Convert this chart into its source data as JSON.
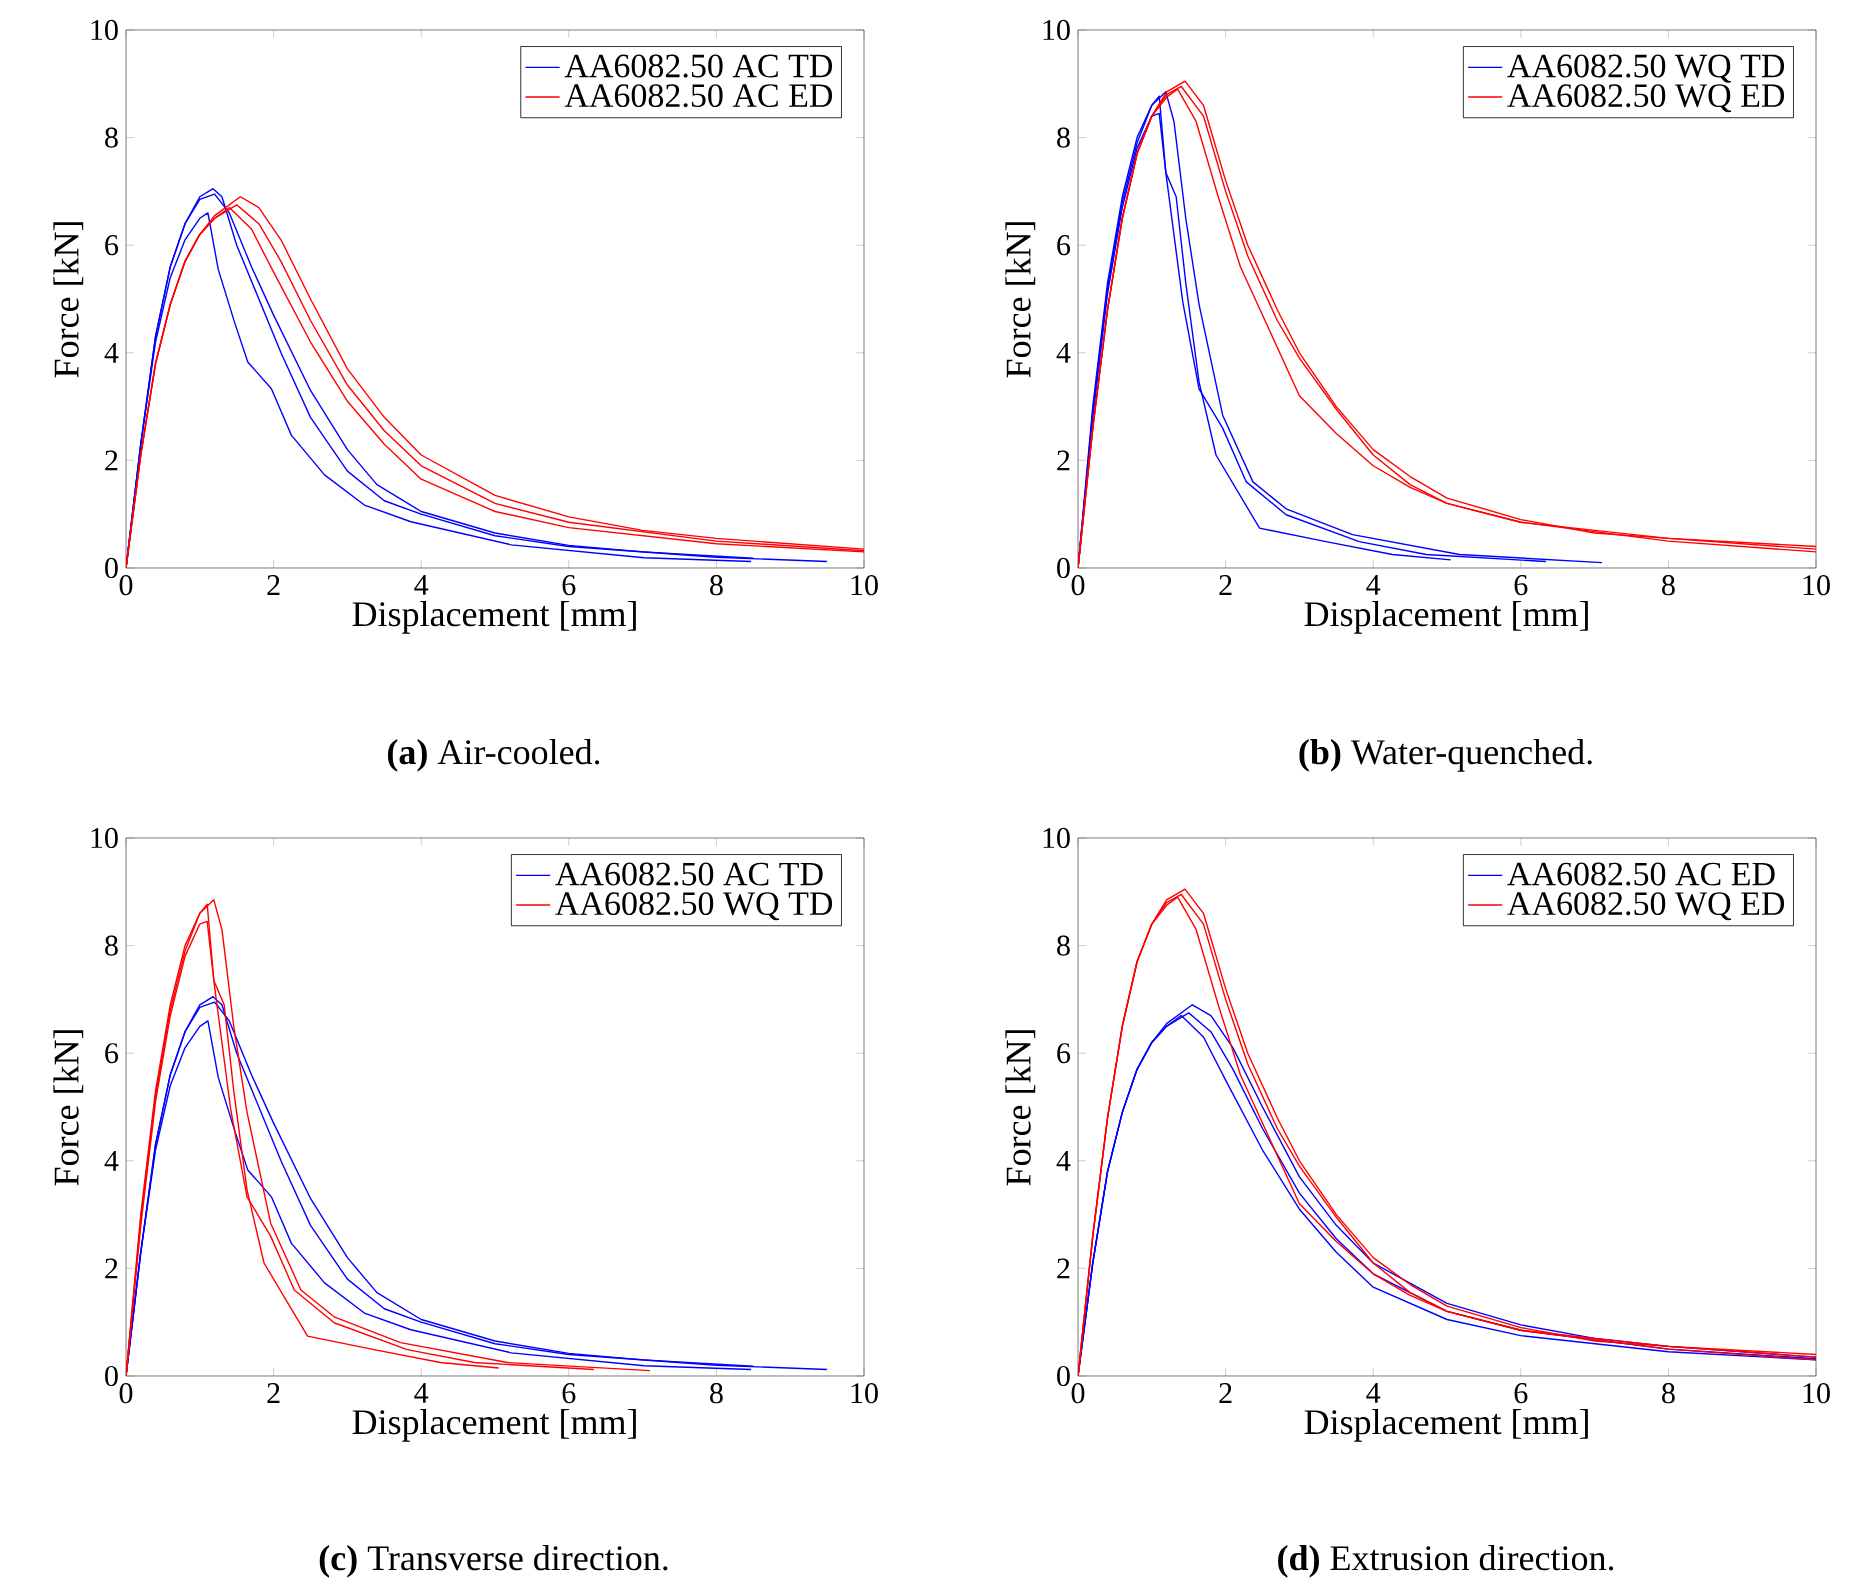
{
  "chart_data": [
    {
      "type": "line",
      "subtitle": "**(a)** Air-cooled.",
      "xlabel": "Displacement [mm]",
      "ylabel": "Force [kN]",
      "xlim": [
        0,
        10
      ],
      "ylim": [
        0,
        10
      ],
      "xticks": [
        0,
        2,
        4,
        6,
        8,
        10
      ],
      "yticks": [
        0,
        2,
        4,
        6,
        8,
        10
      ],
      "legend": "top right",
      "series": [
        {
          "name": "AA6082.50 AC TD",
          "color": "#0000ff",
          "x": [
            0,
            0.2,
            0.4,
            0.6,
            0.8,
            1.0,
            1.11,
            1.25,
            1.47,
            1.65,
            1.97,
            2.24,
            2.69,
            3.23,
            3.86,
            5.22,
            7.02,
            8.47
          ],
          "values": [
            0,
            2.3,
            4.2,
            5.4,
            6.1,
            6.5,
            6.6,
            5.55,
            4.57,
            3.83,
            3.33,
            2.47,
            1.73,
            1.17,
            0.86,
            0.43,
            0.19,
            0.12
          ]
        },
        {
          "color": "#0000ff",
          "x": [
            0,
            0.2,
            0.4,
            0.6,
            0.8,
            1.0,
            1.18,
            1.3,
            1.5,
            1.8,
            2.1,
            2.5,
            3.0,
            3.5,
            4.0,
            5.0,
            6.0,
            8.0,
            9.5
          ],
          "values": [
            0,
            2.3,
            4.3,
            5.6,
            6.4,
            6.9,
            7.05,
            6.9,
            6.0,
            5.0,
            4.0,
            2.8,
            1.8,
            1.25,
            1.0,
            0.6,
            0.4,
            0.2,
            0.12
          ]
        },
        {
          "color": "#0000ff",
          "x": [
            0,
            0.2,
            0.4,
            0.6,
            0.8,
            1.0,
            1.2,
            1.4,
            1.7,
            2.0,
            2.5,
            3.0,
            3.4,
            4.0,
            5.0,
            6.0,
            7.0,
            8.5
          ],
          "values": [
            0,
            2.3,
            4.3,
            5.6,
            6.4,
            6.85,
            6.95,
            6.6,
            5.6,
            4.7,
            3.3,
            2.2,
            1.55,
            1.05,
            0.65,
            0.42,
            0.3,
            0.18
          ]
        },
        {
          "name": "AA6082.50 AC ED",
          "color": "#ff0000",
          "x": [
            0,
            0.2,
            0.4,
            0.6,
            0.8,
            1.0,
            1.2,
            1.55,
            1.8,
            2.1,
            2.5,
            3.0,
            3.5,
            4.0,
            5.0,
            6.0,
            7.0,
            8.0,
            10
          ],
          "values": [
            0,
            2.1,
            3.8,
            4.9,
            5.7,
            6.2,
            6.55,
            6.9,
            6.7,
            6.1,
            5.0,
            3.7,
            2.8,
            2.1,
            1.35,
            0.95,
            0.7,
            0.55,
            0.35
          ]
        },
        {
          "color": "#ff0000",
          "x": [
            0,
            0.2,
            0.4,
            0.6,
            0.8,
            1.0,
            1.2,
            1.5,
            1.8,
            2.1,
            2.5,
            3.0,
            3.5,
            4.0,
            5.0,
            6.0,
            8.0,
            10
          ],
          "values": [
            0,
            2.1,
            3.8,
            4.9,
            5.7,
            6.2,
            6.5,
            6.75,
            6.4,
            5.7,
            4.6,
            3.4,
            2.55,
            1.9,
            1.2,
            0.85,
            0.5,
            0.32
          ]
        },
        {
          "color": "#ff0000",
          "x": [
            0,
            0.2,
            0.4,
            0.6,
            0.8,
            1.0,
            1.2,
            1.4,
            1.7,
            2.0,
            2.5,
            3.0,
            3.5,
            4.0,
            5.0,
            6.0,
            8.0,
            10
          ],
          "values": [
            0,
            2.1,
            3.8,
            4.9,
            5.7,
            6.2,
            6.5,
            6.7,
            6.3,
            5.5,
            4.2,
            3.1,
            2.3,
            1.65,
            1.05,
            0.75,
            0.45,
            0.3
          ]
        }
      ]
    },
    {
      "type": "line",
      "subtitle": "**(b)** Water-quenched.",
      "xlabel": "Displacement [mm]",
      "ylabel": "Force [kN]",
      "xlim": [
        0,
        10
      ],
      "ylim": [
        0,
        10
      ],
      "xticks": [
        0,
        2,
        4,
        6,
        8,
        10
      ],
      "yticks": [
        0,
        2,
        4,
        6,
        8,
        10
      ],
      "legend": "top right",
      "series": [
        {
          "name": "AA6082.50 WQ TD",
          "color": "#0000ff",
          "x": [
            0,
            0.2,
            0.4,
            0.6,
            0.8,
            1.0,
            1.1,
            1.19,
            1.33,
            1.46,
            1.64,
            1.87,
            2.46,
            3.36,
            4.26,
            5.05
          ],
          "values": [
            0,
            2.9,
            5.2,
            6.8,
            7.9,
            8.6,
            8.77,
            7.35,
            6.9,
            5.3,
            3.46,
            2.1,
            0.74,
            0.49,
            0.25,
            0.15
          ]
        },
        {
          "color": "#0000ff",
          "x": [
            0,
            0.2,
            0.4,
            0.6,
            0.8,
            1.0,
            1.1,
            1.19,
            1.42,
            1.64,
            1.96,
            2.28,
            2.82,
            3.81,
            4.72,
            6.34
          ],
          "values": [
            0,
            2.8,
            5.1,
            6.7,
            7.8,
            8.4,
            8.45,
            7.35,
            4.94,
            3.33,
            2.6,
            1.6,
            0.99,
            0.49,
            0.25,
            0.12
          ]
        },
        {
          "color": "#0000ff",
          "x": [
            0,
            0.2,
            0.4,
            0.6,
            0.8,
            1.0,
            1.19,
            1.3,
            1.46,
            1.64,
            1.96,
            2.37,
            2.82,
            3.72,
            5.17,
            7.1
          ],
          "values": [
            0,
            3.0,
            5.3,
            6.9,
            8.0,
            8.6,
            8.85,
            8.3,
            6.5,
            4.9,
            2.84,
            1.6,
            1.1,
            0.62,
            0.25,
            0.1
          ]
        },
        {
          "name": "AA6082.50 WQ ED",
          "color": "#ff0000",
          "x": [
            0,
            0.2,
            0.4,
            0.6,
            0.8,
            1.0,
            1.2,
            1.45,
            1.7,
            2.0,
            2.3,
            2.7,
            3.0,
            3.5,
            4.0,
            4.5,
            5.0,
            6.0,
            7.0,
            8.0,
            10
          ],
          "values": [
            0,
            2.6,
            4.8,
            6.5,
            7.7,
            8.4,
            8.85,
            9.05,
            8.6,
            7.2,
            6.0,
            4.8,
            4.0,
            3.0,
            2.2,
            1.7,
            1.3,
            0.9,
            0.65,
            0.55,
            0.4
          ]
        },
        {
          "color": "#ff0000",
          "x": [
            0,
            0.2,
            0.4,
            0.6,
            0.8,
            1.0,
            1.2,
            1.4,
            1.7,
            2.0,
            2.3,
            2.7,
            3.0,
            3.5,
            4.0,
            4.5,
            5.0,
            6.0,
            8.0,
            10
          ],
          "values": [
            0,
            2.6,
            4.8,
            6.5,
            7.7,
            8.4,
            8.8,
            8.95,
            8.4,
            7.0,
            5.8,
            4.6,
            3.9,
            2.95,
            2.1,
            1.55,
            1.2,
            0.85,
            0.5,
            0.3
          ]
        },
        {
          "color": "#ff0000",
          "x": [
            0,
            0.2,
            0.4,
            0.6,
            0.8,
            1.0,
            1.2,
            1.35,
            1.6,
            1.9,
            2.2,
            2.6,
            3.0,
            3.5,
            4.0,
            4.5,
            5.0,
            6.0,
            8.0,
            10
          ],
          "values": [
            0,
            2.6,
            4.8,
            6.5,
            7.7,
            8.4,
            8.75,
            8.9,
            8.3,
            6.9,
            5.6,
            4.4,
            3.2,
            2.5,
            1.9,
            1.5,
            1.2,
            0.85,
            0.55,
            0.35
          ]
        }
      ]
    },
    {
      "type": "line",
      "subtitle": "**(c)** Transverse direction.",
      "xlabel": "Displacement [mm]",
      "ylabel": "Force [kN]",
      "xlim": [
        0,
        10
      ],
      "ylim": [
        0,
        10
      ],
      "xticks": [
        0,
        2,
        4,
        6,
        8,
        10
      ],
      "yticks": [
        0,
        2,
        4,
        6,
        8,
        10
      ],
      "legend": "top right",
      "series": [
        {
          "name": "AA6082.50 AC TD",
          "color": "#0000ff",
          "x": [
            0,
            0.2,
            0.4,
            0.6,
            0.8,
            1.0,
            1.11,
            1.25,
            1.47,
            1.65,
            1.97,
            2.24,
            2.69,
            3.23,
            3.86,
            5.22,
            7.02,
            8.47
          ],
          "values": [
            0,
            2.3,
            4.2,
            5.4,
            6.1,
            6.5,
            6.6,
            5.55,
            4.57,
            3.83,
            3.33,
            2.47,
            1.73,
            1.17,
            0.86,
            0.43,
            0.19,
            0.12
          ]
        },
        {
          "color": "#0000ff",
          "x": [
            0,
            0.2,
            0.4,
            0.6,
            0.8,
            1.0,
            1.18,
            1.3,
            1.5,
            1.8,
            2.1,
            2.5,
            3.0,
            3.5,
            4.0,
            5.0,
            6.0,
            8.0,
            9.5
          ],
          "values": [
            0,
            2.3,
            4.3,
            5.6,
            6.4,
            6.9,
            7.05,
            6.9,
            6.0,
            5.0,
            4.0,
            2.8,
            1.8,
            1.25,
            1.0,
            0.6,
            0.4,
            0.2,
            0.12
          ]
        },
        {
          "color": "#0000ff",
          "x": [
            0,
            0.2,
            0.4,
            0.6,
            0.8,
            1.0,
            1.2,
            1.4,
            1.7,
            2.0,
            2.5,
            3.0,
            3.4,
            4.0,
            5.0,
            6.0,
            7.0,
            8.5
          ],
          "values": [
            0,
            2.3,
            4.3,
            5.6,
            6.4,
            6.85,
            6.95,
            6.6,
            5.6,
            4.7,
            3.3,
            2.2,
            1.55,
            1.05,
            0.65,
            0.42,
            0.3,
            0.18
          ]
        },
        {
          "name": "AA6082.50 WQ TD",
          "color": "#ff0000",
          "x": [
            0,
            0.2,
            0.4,
            0.6,
            0.8,
            1.0,
            1.1,
            1.19,
            1.33,
            1.46,
            1.64,
            1.87,
            2.46,
            3.36,
            4.26,
            5.05
          ],
          "values": [
            0,
            2.9,
            5.2,
            6.8,
            7.9,
            8.6,
            8.77,
            7.35,
            6.9,
            5.3,
            3.46,
            2.1,
            0.74,
            0.49,
            0.25,
            0.15
          ]
        },
        {
          "color": "#ff0000",
          "x": [
            0,
            0.2,
            0.4,
            0.6,
            0.8,
            1.0,
            1.1,
            1.19,
            1.42,
            1.64,
            1.96,
            2.28,
            2.82,
            3.81,
            4.72,
            6.34
          ],
          "values": [
            0,
            2.8,
            5.1,
            6.7,
            7.8,
            8.4,
            8.45,
            7.35,
            4.94,
            3.33,
            2.6,
            1.6,
            0.99,
            0.49,
            0.25,
            0.12
          ]
        },
        {
          "color": "#ff0000",
          "x": [
            0,
            0.2,
            0.4,
            0.6,
            0.8,
            1.0,
            1.19,
            1.3,
            1.46,
            1.64,
            1.96,
            2.37,
            2.82,
            3.72,
            5.17,
            7.1
          ],
          "values": [
            0,
            3.0,
            5.3,
            6.9,
            8.0,
            8.6,
            8.85,
            8.3,
            6.5,
            4.9,
            2.84,
            1.6,
            1.1,
            0.62,
            0.25,
            0.1
          ]
        }
      ]
    },
    {
      "type": "line",
      "subtitle": "**(d)** Extrusion direction.",
      "xlabel": "Displacement [mm]",
      "ylabel": "Force [kN]",
      "xlim": [
        0,
        10
      ],
      "ylim": [
        0,
        10
      ],
      "xticks": [
        0,
        2,
        4,
        6,
        8,
        10
      ],
      "yticks": [
        0,
        2,
        4,
        6,
        8,
        10
      ],
      "legend": "top right",
      "series": [
        {
          "name": "AA6082.50 AC ED",
          "color": "#0000ff",
          "x": [
            0,
            0.2,
            0.4,
            0.6,
            0.8,
            1.0,
            1.2,
            1.55,
            1.8,
            2.1,
            2.5,
            3.0,
            3.5,
            4.0,
            5.0,
            6.0,
            7.0,
            8.0,
            10
          ],
          "values": [
            0,
            2.1,
            3.8,
            4.9,
            5.7,
            6.2,
            6.55,
            6.9,
            6.7,
            6.1,
            5.0,
            3.7,
            2.8,
            2.1,
            1.35,
            0.95,
            0.7,
            0.55,
            0.35
          ]
        },
        {
          "color": "#0000ff",
          "x": [
            0,
            0.2,
            0.4,
            0.6,
            0.8,
            1.0,
            1.2,
            1.5,
            1.8,
            2.1,
            2.5,
            3.0,
            3.5,
            4.0,
            5.0,
            6.0,
            8.0,
            10
          ],
          "values": [
            0,
            2.1,
            3.8,
            4.9,
            5.7,
            6.2,
            6.5,
            6.75,
            6.4,
            5.7,
            4.6,
            3.4,
            2.55,
            1.9,
            1.2,
            0.85,
            0.5,
            0.32
          ]
        },
        {
          "color": "#0000ff",
          "x": [
            0,
            0.2,
            0.4,
            0.6,
            0.8,
            1.0,
            1.2,
            1.4,
            1.7,
            2.0,
            2.5,
            3.0,
            3.5,
            4.0,
            5.0,
            6.0,
            8.0,
            10
          ],
          "values": [
            0,
            2.1,
            3.8,
            4.9,
            5.7,
            6.2,
            6.5,
            6.7,
            6.3,
            5.5,
            4.2,
            3.1,
            2.3,
            1.65,
            1.05,
            0.75,
            0.45,
            0.3
          ]
        },
        {
          "name": "AA6082.50 WQ ED",
          "color": "#ff0000",
          "x": [
            0,
            0.2,
            0.4,
            0.6,
            0.8,
            1.0,
            1.2,
            1.45,
            1.7,
            2.0,
            2.3,
            2.7,
            3.0,
            3.5,
            4.0,
            4.5,
            5.0,
            6.0,
            7.0,
            8.0,
            10
          ],
          "values": [
            0,
            2.6,
            4.8,
            6.5,
            7.7,
            8.4,
            8.85,
            9.05,
            8.6,
            7.2,
            6.0,
            4.8,
            4.0,
            3.0,
            2.2,
            1.7,
            1.3,
            0.9,
            0.65,
            0.55,
            0.4
          ]
        },
        {
          "color": "#ff0000",
          "x": [
            0,
            0.2,
            0.4,
            0.6,
            0.8,
            1.0,
            1.2,
            1.4,
            1.7,
            2.0,
            2.3,
            2.7,
            3.0,
            3.5,
            4.0,
            4.5,
            5.0,
            6.0,
            8.0,
            10
          ],
          "values": [
            0,
            2.6,
            4.8,
            6.5,
            7.7,
            8.4,
            8.8,
            8.95,
            8.4,
            7.0,
            5.8,
            4.6,
            3.9,
            2.95,
            2.1,
            1.55,
            1.2,
            0.85,
            0.5,
            0.3
          ]
        },
        {
          "color": "#ff0000",
          "x": [
            0,
            0.2,
            0.4,
            0.6,
            0.8,
            1.0,
            1.2,
            1.35,
            1.6,
            1.9,
            2.2,
            2.6,
            3.0,
            3.5,
            4.0,
            4.5,
            5.0,
            6.0,
            8.0,
            10
          ],
          "values": [
            0,
            2.6,
            4.8,
            6.5,
            7.7,
            8.4,
            8.75,
            8.9,
            8.3,
            6.9,
            5.6,
            4.4,
            3.2,
            2.5,
            1.9,
            1.5,
            1.2,
            0.85,
            0.55,
            0.35
          ]
        }
      ]
    }
  ]
}
